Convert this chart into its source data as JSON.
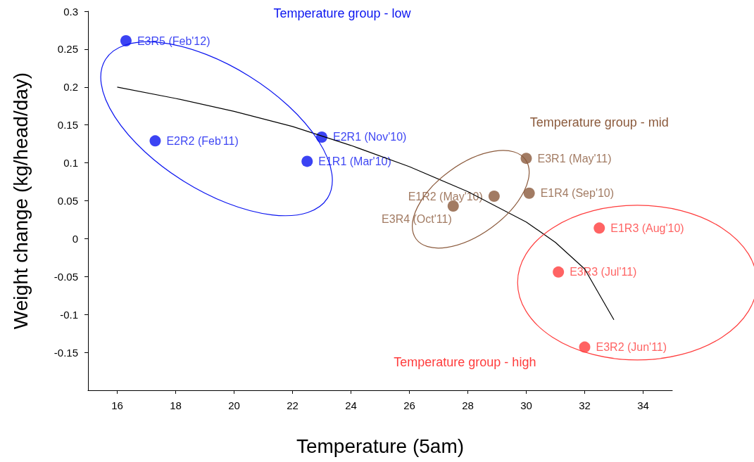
{
  "chart_data": {
    "type": "scatter",
    "xlabel": "Temperature (5am)",
    "ylabel": "Weight change (kg/head/day)",
    "xlim": [
      15,
      35
    ],
    "xticks": [
      16,
      18,
      20,
      22,
      24,
      26,
      28,
      30,
      32,
      34
    ],
    "ylim": [
      -0.2,
      0.3
    ],
    "yticks": [
      -0.15,
      -0.1,
      -0.05,
      0,
      0.05,
      0.1,
      0.15,
      0.2,
      0.25,
      0.3
    ],
    "grid": false,
    "legend": false,
    "marker": "circle",
    "series": [
      {
        "name": "Temperature group - low",
        "color": "#0a14f0",
        "x": [
          16.3,
          17.3,
          23.0,
          22.5
        ],
        "values": [
          0.261,
          0.129,
          0.134,
          0.102
        ],
        "value_labels": [
          "E3R5 (Feb'12)",
          "E2R2 (Feb'11)",
          "E2R1 (Nov'10)",
          "E1R1 (Mar'10)"
        ]
      },
      {
        "name": "Temperature group - mid",
        "color": "#8b5a3c",
        "x": [
          30.0,
          30.1,
          28.9,
          27.5
        ],
        "values": [
          0.106,
          0.06,
          0.056,
          0.043
        ],
        "value_labels": [
          "E3R1 (May'11)",
          "E1R4 (Sep'10)",
          "E1R2 (May'10)",
          "E3R4 (Oct'11)"
        ]
      },
      {
        "name": "Temperature group - high",
        "color": "#ff3c3c",
        "x": [
          32.5,
          31.1,
          32.0
        ],
        "values": [
          0.014,
          -0.044,
          -0.143
        ],
        "value_labels": [
          "E1R3 (Aug'10)",
          "E3R3 (Jul'11)",
          "E3R2 (Jun'11)"
        ]
      },
      {
        "type": "line",
        "color": "#000000",
        "line_style": "solid",
        "marker": "none",
        "x": [
          16,
          18,
          20,
          22,
          24,
          26,
          28,
          30,
          31,
          32,
          33
        ],
        "values": [
          0.2,
          0.185,
          0.168,
          0.148,
          0.123,
          0.095,
          0.062,
          0.022,
          -0.005,
          -0.04,
          -0.107
        ]
      }
    ]
  }
}
